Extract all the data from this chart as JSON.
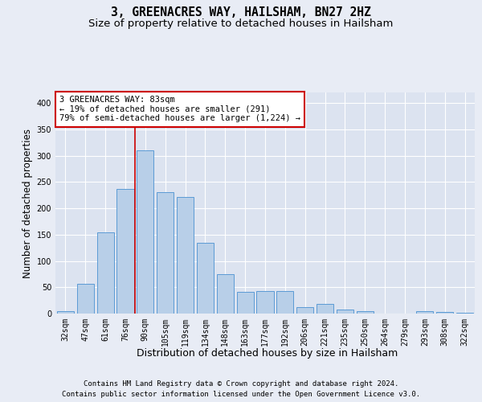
{
  "title_line1": "3, GREENACRES WAY, HAILSHAM, BN27 2HZ",
  "title_line2": "Size of property relative to detached houses in Hailsham",
  "xlabel": "Distribution of detached houses by size in Hailsham",
  "ylabel": "Number of detached properties",
  "categories": [
    "32sqm",
    "47sqm",
    "61sqm",
    "76sqm",
    "90sqm",
    "105sqm",
    "119sqm",
    "134sqm",
    "148sqm",
    "163sqm",
    "177sqm",
    "192sqm",
    "206sqm",
    "221sqm",
    "235sqm",
    "250sqm",
    "264sqm",
    "279sqm",
    "293sqm",
    "308sqm",
    "322sqm"
  ],
  "values": [
    4,
    57,
    155,
    237,
    310,
    230,
    222,
    135,
    75,
    42,
    43,
    43,
    12,
    18,
    7,
    4,
    0,
    0,
    4,
    3,
    2
  ],
  "bar_color": "#b8cfe8",
  "bar_edge_color": "#5b9bd5",
  "background_color": "#e8ecf5",
  "plot_bg_color": "#dce3f0",
  "grid_color": "#ffffff",
  "vline_color": "#cc0000",
  "annotation_text": "3 GREENACRES WAY: 83sqm\n← 19% of detached houses are smaller (291)\n79% of semi-detached houses are larger (1,224) →",
  "annotation_box_color": "#ffffff",
  "annotation_box_edge_color": "#cc0000",
  "ylim": [
    0,
    420
  ],
  "yticks": [
    0,
    50,
    100,
    150,
    200,
    250,
    300,
    350,
    400
  ],
  "footer_line1": "Contains HM Land Registry data © Crown copyright and database right 2024.",
  "footer_line2": "Contains public sector information licensed under the Open Government Licence v3.0.",
  "title_fontsize": 10.5,
  "subtitle_fontsize": 9.5,
  "ylabel_fontsize": 8.5,
  "xlabel_fontsize": 9,
  "tick_fontsize": 7,
  "annotation_fontsize": 7.5,
  "footer_fontsize": 6.5,
  "vline_pos": 3.5
}
